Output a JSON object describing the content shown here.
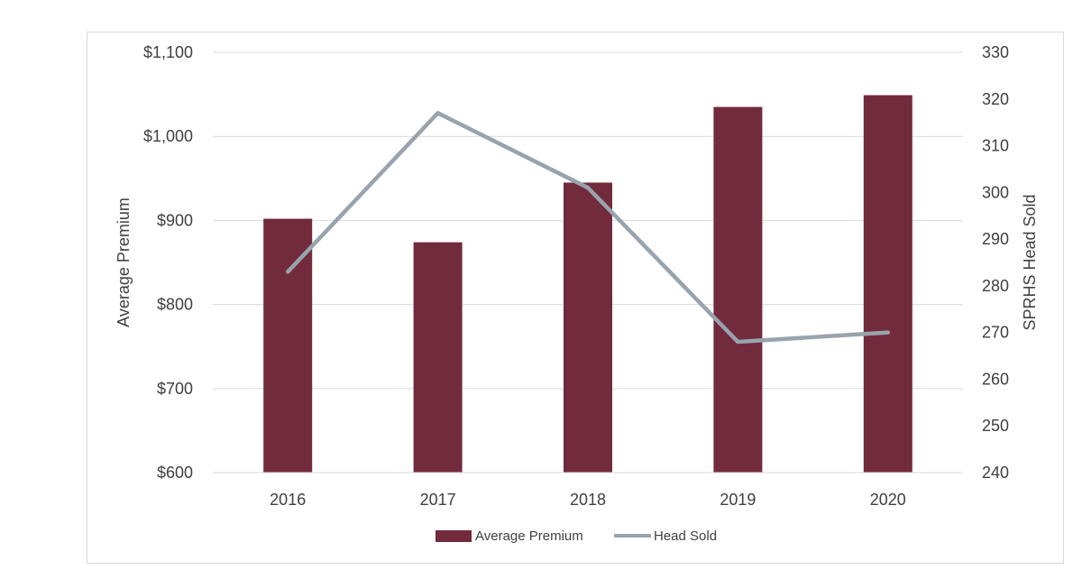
{
  "chart_data": {
    "type": "bar",
    "categories": [
      "2016",
      "2017",
      "2018",
      "2019",
      "2020"
    ],
    "series": [
      {
        "name": "Average Premium",
        "type": "bar",
        "axis": "left",
        "color": "#722a3d",
        "values": [
          902,
          874,
          945,
          1035,
          1049
        ]
      },
      {
        "name": "Head Sold",
        "type": "line",
        "axis": "right",
        "color": "#98a3ad",
        "values": [
          283,
          317,
          301,
          268,
          270
        ]
      }
    ],
    "ylabel": "Average Premium",
    "y2label": "SPRHS Head Sold",
    "ylim": [
      600,
      1100
    ],
    "y2lim": [
      240,
      330
    ],
    "yticks": [
      "$600",
      "$700",
      "$800",
      "$900",
      "$1,000",
      "$1,100"
    ],
    "y2ticks": [
      "240",
      "250",
      "260",
      "270",
      "280",
      "290",
      "300",
      "310",
      "320",
      "330"
    ],
    "grid": true,
    "legend_position": "bottom"
  }
}
